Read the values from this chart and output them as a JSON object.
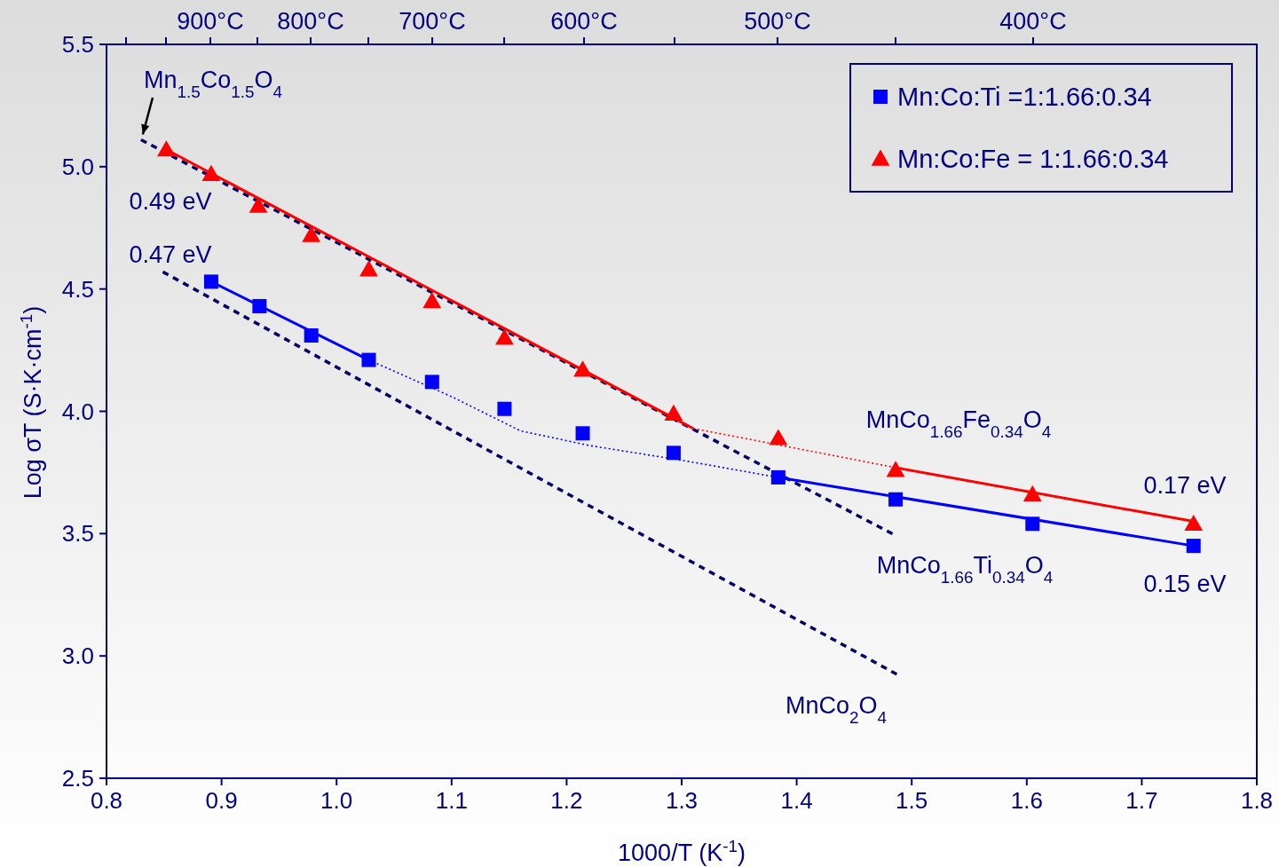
{
  "chart_data": {
    "type": "scatter",
    "xlabel": "1000/T (K$^{-1}$)",
    "ylabel": "Log σT (S·K·cm$^{-1}$)",
    "xlim": [
      0.8,
      1.8
    ],
    "xticks": [
      {
        "value": 0.8,
        "label": "0.8"
      },
      {
        "value": 0.9,
        "label": "0.9"
      },
      {
        "value": 1.0,
        "label": "1.0"
      },
      {
        "value": 1.1,
        "label": "1.1"
      },
      {
        "value": 1.2,
        "label": "1.2"
      },
      {
        "value": 1.3,
        "label": "1.3"
      },
      {
        "value": 1.4,
        "label": "1.4"
      },
      {
        "value": 1.5,
        "label": "1.5"
      },
      {
        "value": 1.6,
        "label": "1.6"
      },
      {
        "value": 1.7,
        "label": "1.7"
      },
      {
        "value": 1.8,
        "label": "1.8"
      }
    ],
    "ylim": [
      2.5,
      5.5
    ],
    "yticks": [
      {
        "value": 2.5,
        "label": "2.5"
      },
      {
        "value": 3.0,
        "label": "3.0"
      },
      {
        "value": 3.5,
        "label": "3.5"
      },
      {
        "value": 4.0,
        "label": "4.0"
      },
      {
        "value": 4.5,
        "label": "4.5"
      },
      {
        "value": 5.0,
        "label": "5.0"
      },
      {
        "value": 5.5,
        "label": "5.5"
      }
    ],
    "grid": false,
    "legend": "top right",
    "series": [
      {
        "type": "line",
        "color": "#000066",
        "line_style": "dashed",
        "x": [
          0.83,
          1.487
        ],
        "values": [
          5.11,
          3.49
        ]
      },
      {
        "type": "line",
        "color": "#000066",
        "line_style": "dashed",
        "x": [
          0.849,
          1.487
        ],
        "values": [
          4.57,
          2.925
        ]
      },
      {
        "type": "line",
        "color": "#ff0000",
        "line_style": "solid",
        "x": [
          0.852,
          1.31
        ],
        "values": [
          5.07,
          3.93
        ]
      },
      {
        "type": "line",
        "color": "#ff0000",
        "line_style": "dotted",
        "x": [
          1.31,
          1.486
        ],
        "values": [
          3.93,
          3.77
        ]
      },
      {
        "type": "line",
        "color": "#ff0000",
        "line_style": "solid",
        "x": [
          1.486,
          1.745
        ],
        "values": [
          3.77,
          3.55
        ]
      },
      {
        "type": "line",
        "color": "#0000ff",
        "line_style": "solid",
        "x": [
          0.891,
          1.028
        ],
        "values": [
          4.53,
          4.21
        ]
      },
      {
        "type": "line",
        "color": "#0000ff",
        "line_style": "dotted",
        "x": [
          1.028,
          1.1,
          1.16,
          1.22,
          1.3,
          1.384
        ],
        "values": [
          4.21,
          4.06,
          3.92,
          3.86,
          3.8,
          3.73
        ]
      },
      {
        "type": "line",
        "color": "#0000ff",
        "line_style": "solid",
        "x": [
          1.384,
          1.745
        ],
        "values": [
          3.73,
          3.45
        ]
      },
      {
        "name": "Mn:Co:Ti =1:1.66:0.34",
        "color": "#0000ff",
        "marker": "square",
        "x": [
          0.891,
          0.933,
          0.978,
          1.028,
          1.083,
          1.146,
          1.214,
          1.293,
          1.384,
          1.486,
          1.605,
          1.745
        ],
        "values": [
          4.53,
          4.43,
          4.31,
          4.21,
          4.12,
          4.01,
          3.91,
          3.83,
          3.73,
          3.64,
          3.54,
          3.45
        ]
      },
      {
        "name": "Mn:Co:Fe = 1:1.66:0.34",
        "color": "#ff0000",
        "marker": "triangle",
        "x": [
          0.852,
          0.891,
          0.932,
          0.978,
          1.028,
          1.083,
          1.146,
          1.214,
          1.293,
          1.384,
          1.486,
          1.605,
          1.745
        ],
        "values": [
          5.07,
          4.97,
          4.84,
          4.72,
          4.58,
          4.45,
          4.3,
          4.17,
          3.99,
          3.89,
          3.76,
          3.66,
          3.54
        ]
      }
    ],
    "annotations": [
      "Mn$_{1.5}$Co$_{1.5}$O$_{4}$",
      "0.49 eV",
      "0.47 eV",
      "MnCo$_{1.66}$Fe$_{0.34}$O$_{4}$",
      "0.17 eV",
      "MnCo$_{1.66}$Ti$_{0.34}$O$_{4}$",
      "0.15 eV",
      "MnCo$_{2}$O$_{4}$",
      "900°C",
      "800°C",
      "700°C",
      "600°C",
      "500°C",
      "400°C"
    ]
  }
}
